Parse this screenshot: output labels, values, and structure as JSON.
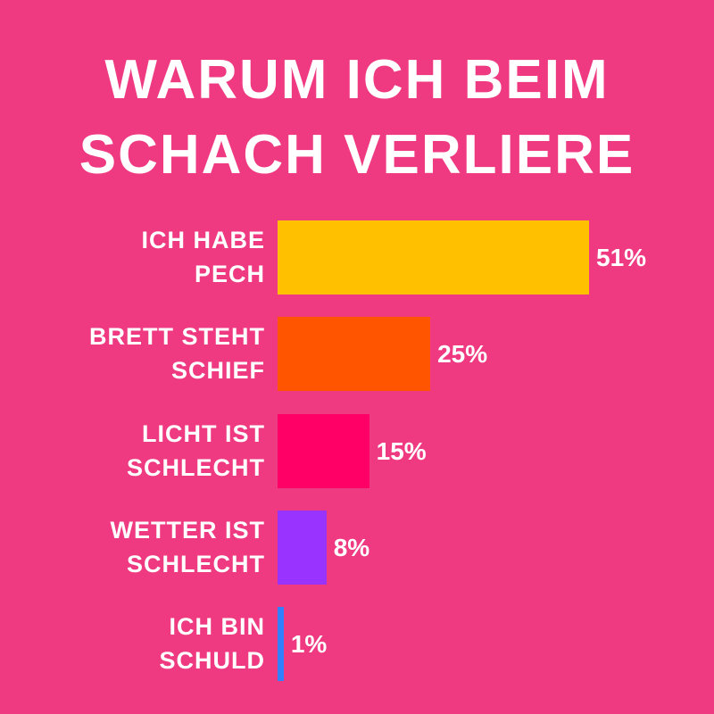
{
  "chart_data": {
    "type": "bar",
    "orientation": "horizontal",
    "title": "WARUM ICH BEIM\nSCHACH VERLIERE",
    "categories": [
      "ICH HABE\nPECH",
      "BRETT STEHT\nSCHIEF",
      "LICHT IST\nSCHLECHT",
      "WETTER IST\nSCHLECHT",
      "ICH BIN\nSCHULD"
    ],
    "values": [
      51,
      25,
      15,
      8,
      1
    ],
    "value_labels": [
      "51%",
      "25%",
      "15%",
      "8%",
      "1%"
    ],
    "colors": [
      "#ffc000",
      "#ff5500",
      "#ff0066",
      "#9933ff",
      "#3380ff"
    ]
  }
}
